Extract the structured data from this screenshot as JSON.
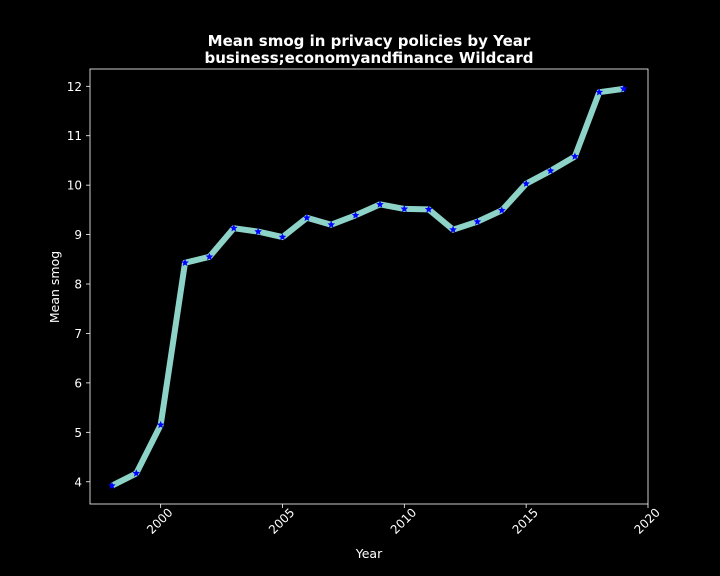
{
  "chart_data": {
    "type": "line",
    "title": [
      "Mean smog in privacy policies by Year",
      "business;economyandfinance Wildcard"
    ],
    "xlabel": "Year",
    "ylabel": "Mean smog",
    "xlim": [
      1997.1,
      2020.0
    ],
    "ylim": [
      3.55,
      12.35
    ],
    "xticks": [
      2000,
      2005,
      2010,
      2015,
      2020
    ],
    "yticks": [
      4,
      5,
      6,
      7,
      8,
      9,
      10,
      11,
      12
    ],
    "grid": false,
    "line_color": "#8dd3c7",
    "marker": "star",
    "marker_color": "#0000ff",
    "series": [
      {
        "name": "Mean smog",
        "x": [
          1998,
          1999,
          2000,
          2001,
          2002,
          2003,
          2004,
          2005,
          2006,
          2007,
          2008,
          2009,
          2010,
          2011,
          2012,
          2013,
          2014,
          2015,
          2016,
          2017,
          2018,
          2019
        ],
        "values": [
          3.92,
          4.17,
          5.15,
          8.43,
          8.55,
          9.13,
          9.06,
          8.95,
          9.34,
          9.2,
          9.39,
          9.61,
          9.52,
          9.51,
          9.1,
          9.26,
          9.49,
          10.03,
          10.29,
          10.58,
          11.88,
          11.95
        ]
      }
    ]
  }
}
